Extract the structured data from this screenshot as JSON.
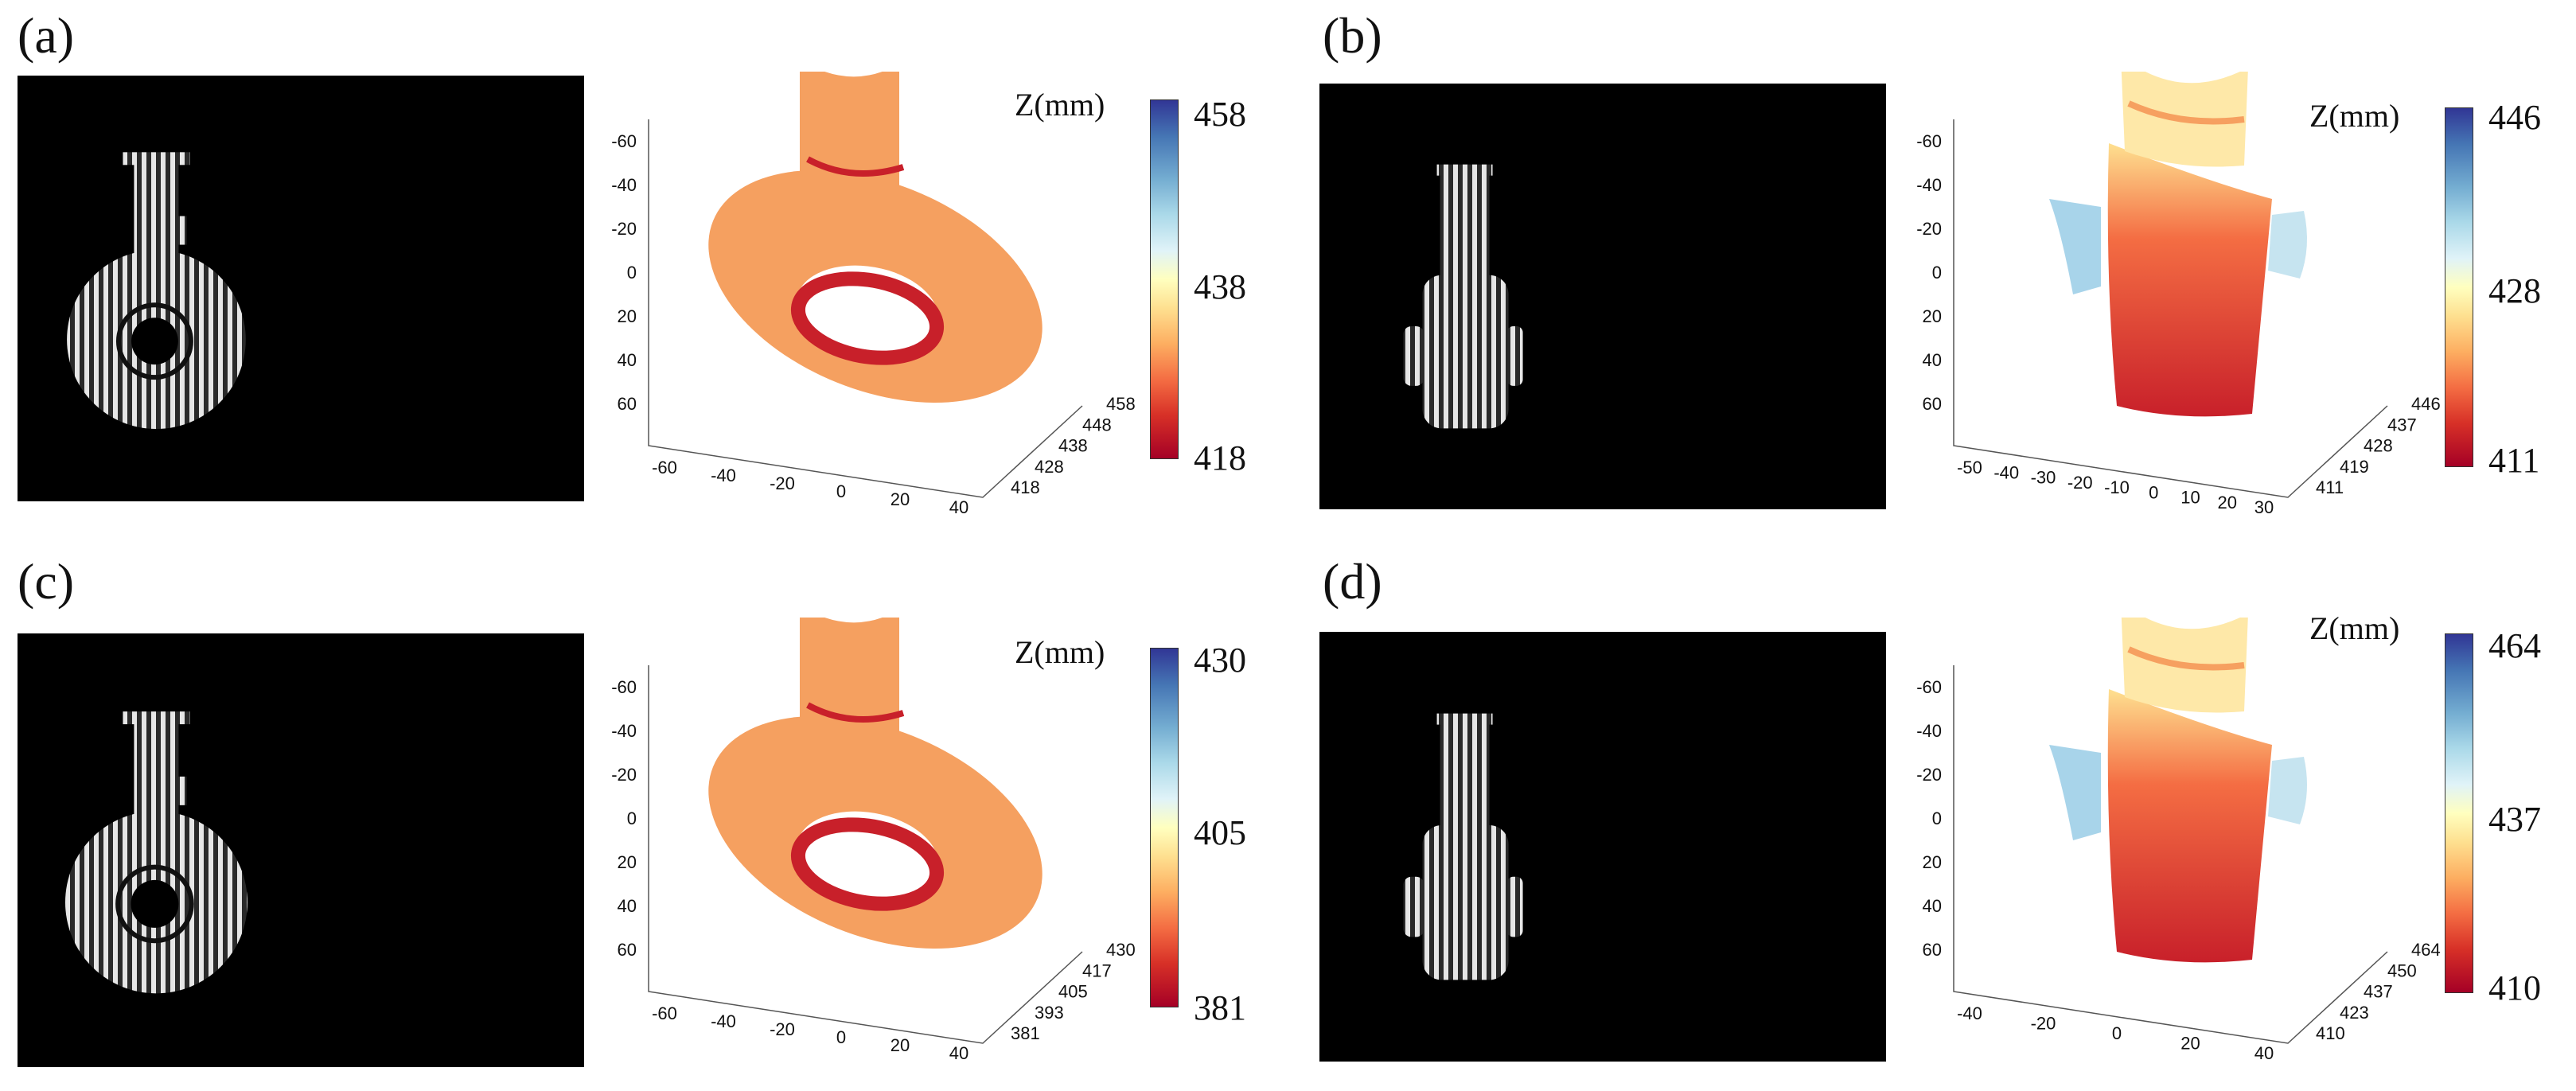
{
  "panels": [
    {
      "letter": "(a)",
      "fringe_orientation": "front",
      "colorbar": {
        "title": "Z(mm)",
        "max": "458",
        "mid": "438",
        "min": "418"
      },
      "axes": {
        "vertical_ticks": [
          "-60",
          "-40",
          "-20",
          "0",
          "20",
          "40",
          "60"
        ],
        "bottom_ticks": [
          "-60",
          "-40",
          "-20",
          "0",
          "20",
          "40"
        ],
        "depth_ticks": [
          "418",
          "428",
          "438",
          "448",
          "458"
        ]
      }
    },
    {
      "letter": "(b)",
      "fringe_orientation": "side",
      "colorbar": {
        "title": "Z(mm)",
        "max": "446",
        "mid": "428",
        "min": "411"
      },
      "axes": {
        "vertical_ticks": [
          "-60",
          "-40",
          "-20",
          "0",
          "20",
          "40",
          "60"
        ],
        "bottom_ticks": [
          "-50",
          "-40",
          "-30",
          "-20",
          "-10",
          "0",
          "10",
          "20",
          "30"
        ],
        "depth_ticks": [
          "411",
          "419",
          "428",
          "437",
          "446"
        ]
      }
    },
    {
      "letter": "(c)",
      "fringe_orientation": "front",
      "colorbar": {
        "title": "Z(mm)",
        "max": "430",
        "mid": "405",
        "min": "381"
      },
      "axes": {
        "vertical_ticks": [
          "-60",
          "-40",
          "-20",
          "0",
          "20",
          "40",
          "60"
        ],
        "bottom_ticks": [
          "-60",
          "-40",
          "-20",
          "0",
          "20",
          "40"
        ],
        "depth_ticks": [
          "381",
          "393",
          "405",
          "417",
          "430"
        ]
      }
    },
    {
      "letter": "(d)",
      "fringe_orientation": "side",
      "colorbar": {
        "title": "Z(mm)",
        "max": "464",
        "mid": "437",
        "min": "410"
      },
      "axes": {
        "vertical_ticks": [
          "-60",
          "-40",
          "-20",
          "0",
          "20",
          "40",
          "60"
        ],
        "bottom_ticks": [
          "-40",
          "-20",
          "0",
          "20",
          "40"
        ],
        "depth_ticks": [
          "410",
          "423",
          "437",
          "450",
          "464"
        ]
      }
    }
  ],
  "colors": {
    "colormap": [
      "#313695",
      "#4575b4",
      "#74add1",
      "#abd9e9",
      "#e0f3f8",
      "#ffffbf",
      "#fee090",
      "#fdae61",
      "#f46d43",
      "#d73027",
      "#a50026"
    ],
    "surface_orange": "#f5a060",
    "surface_red": "#c8202a",
    "fringe_background": "#000000"
  }
}
